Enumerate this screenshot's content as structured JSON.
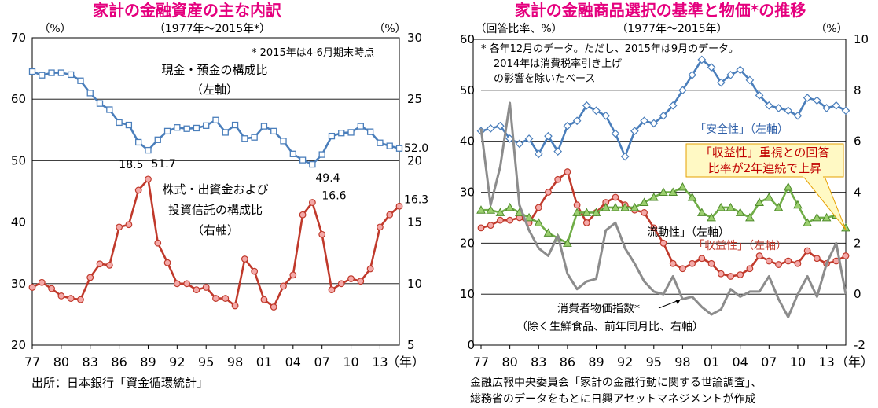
{
  "chart_data": [
    {
      "type": "line",
      "title": "家計の金融資産の主な内訳",
      "period": "（1977年～2015年*）",
      "unit_left": "（%）",
      "unit_right": "（%）",
      "x_suffix": "（年）",
      "x_tick_labels": [
        "77",
        "80",
        "83",
        "86",
        "89",
        "92",
        "95",
        "98",
        "01",
        "04",
        "07",
        "10",
        "13"
      ],
      "y_left_ticks": [
        "70",
        "60",
        "50",
        "40",
        "30",
        "20"
      ],
      "y_right_ticks": [
        "30",
        "25",
        "20",
        "15",
        "10",
        "5"
      ],
      "ylim_left": [
        20,
        70
      ],
      "ylim_right": [
        5,
        30
      ],
      "grid": true,
      "note": "* 2015年は4-6月期末時点",
      "source": "出所：日本銀行「資金循環統計」",
      "x": [
        1977,
        1978,
        1979,
        1980,
        1981,
        1982,
        1983,
        1984,
        1985,
        1986,
        1987,
        1988,
        1989,
        1990,
        1991,
        1992,
        1993,
        1994,
        1995,
        1996,
        1997,
        1998,
        1999,
        2000,
        2001,
        2002,
        2003,
        2004,
        2005,
        2006,
        2007,
        2008,
        2009,
        2010,
        2011,
        2012,
        2013,
        2014,
        2015
      ],
      "series": [
        {
          "name_lines": [
            "現金・預金の構成比",
            "（左軸）"
          ],
          "axis": "left",
          "color": "#4a7ebb",
          "marker": "square",
          "values": [
            64.5,
            63.9,
            64.3,
            64.3,
            64.0,
            63.0,
            61.0,
            59.3,
            58.3,
            56.2,
            55.8,
            53.0,
            51.7,
            53.4,
            54.8,
            55.4,
            55.2,
            55.3,
            55.7,
            56.6,
            54.6,
            55.8,
            53.6,
            53.8,
            55.6,
            54.8,
            53.2,
            51.1,
            50.1,
            49.4,
            51.0,
            54.0,
            54.5,
            54.6,
            55.6,
            54.7,
            52.9,
            52.4,
            52.0
          ],
          "data_labels": [
            {
              "index": 12,
              "text": "51.7"
            },
            {
              "index": 29,
              "text": "49.4"
            },
            {
              "index": 38,
              "text": "52.0"
            }
          ]
        },
        {
          "name_lines": [
            "株式・出資金および",
            "投資信託の構成比",
            "（右軸）"
          ],
          "axis": "right",
          "color": "#c0392b",
          "marker": "circle",
          "values": [
            9.7,
            10.1,
            9.6,
            9.0,
            8.8,
            8.7,
            10.5,
            11.6,
            11.5,
            14.6,
            14.8,
            17.6,
            18.5,
            13.3,
            11.7,
            10.0,
            10.0,
            9.5,
            9.7,
            8.8,
            8.8,
            8.2,
            12.0,
            11.0,
            8.7,
            8.1,
            9.8,
            10.7,
            15.6,
            16.6,
            14.0,
            9.5,
            10.0,
            10.4,
            10.2,
            11.2,
            14.6,
            15.6,
            16.3
          ],
          "data_labels": [
            {
              "index": 12,
              "text": "18.5"
            },
            {
              "index": 29,
              "text": "16.6"
            },
            {
              "index": 38,
              "text": "16.3"
            }
          ]
        }
      ]
    },
    {
      "type": "line",
      "title": "家計の金融商品選択の基準と物価*の推移",
      "period": "（1977年～2015年）",
      "unit_left": "（回答比率、%）",
      "unit_right": "（%）",
      "x_suffix": "（年）",
      "x_tick_labels": [
        "77",
        "80",
        "83",
        "86",
        "89",
        "92",
        "95",
        "98",
        "01",
        "04",
        "07",
        "10",
        "13"
      ],
      "y_left_ticks": [
        "60",
        "50",
        "40",
        "30",
        "20",
        "10",
        "0"
      ],
      "y_right_ticks": [
        "10",
        "8",
        "6",
        "4",
        "2",
        "0",
        "-2"
      ],
      "ylim_left": [
        0,
        60
      ],
      "ylim_right": [
        -2,
        10
      ],
      "grid": true,
      "note_lines": [
        "* 各年12月のデータ。ただし、2015年は9月のデータ。",
        "2014年は消費税率引き上げ",
        "の影響を除いたベース"
      ],
      "callout_lines": [
        "「収益性」重視との回答",
        "比率が2年連続で上昇"
      ],
      "source_lines": [
        "金融広報中央委員会「家計の金融行動に関する世論調査」、",
        "総務省のデータをもとに日興アセットマネジメントが作成"
      ],
      "x": [
        1977,
        1978,
        1979,
        1980,
        1981,
        1982,
        1983,
        1984,
        1985,
        1986,
        1987,
        1988,
        1989,
        1990,
        1991,
        1992,
        1993,
        1994,
        1995,
        1996,
        1997,
        1998,
        1999,
        2000,
        2001,
        2002,
        2003,
        2004,
        2005,
        2006,
        2007,
        2008,
        2009,
        2010,
        2011,
        2012,
        2013,
        2014,
        2015
      ],
      "series": [
        {
          "name": "「安全性」（左軸）",
          "axis": "left",
          "color": "#4a7ebb",
          "marker": "diamond",
          "values": [
            42,
            42.5,
            43,
            40.5,
            39.5,
            40.5,
            37.5,
            41,
            38,
            43,
            44,
            47,
            46,
            45,
            41.5,
            37,
            42,
            44,
            43.5,
            45,
            47,
            50,
            53,
            56,
            54.5,
            51.5,
            53,
            54,
            52,
            49,
            47,
            46.5,
            46,
            45,
            48.5,
            48,
            46.5,
            47,
            46
          ]
        },
        {
          "name": "「収益性」（左軸）",
          "axis": "left",
          "color": "#c0392b",
          "marker": "circle",
          "values": [
            23,
            23.5,
            24.5,
            24.5,
            25,
            24,
            27,
            30,
            32.5,
            34,
            27.5,
            24,
            26,
            28,
            29,
            27.5,
            26.5,
            26,
            23,
            20,
            16,
            15,
            16,
            17,
            16,
            14,
            13.5,
            13.8,
            15,
            17.5,
            16.5,
            15.8,
            16.5,
            16,
            18.5,
            17,
            16,
            16.5,
            17.5
          ]
        },
        {
          "name": "流動性」（左軸）",
          "axis": "left",
          "color": "#70ad47",
          "marker": "triangle",
          "values": [
            26.5,
            26.5,
            26,
            27,
            26,
            25,
            24,
            22,
            21,
            20,
            26,
            26,
            26,
            27,
            27,
            27,
            27,
            28,
            29,
            30,
            30,
            31,
            29,
            26,
            25,
            27,
            27,
            26,
            25,
            28,
            29,
            27,
            31,
            27.5,
            24,
            25,
            25,
            25.5,
            23
          ]
        },
        {
          "name_lines": [
            "消費者物価指数*",
            "（除く生鮮食品、前年同月比、右軸）"
          ],
          "axis": "right",
          "color": "#8c8c8c",
          "marker": "none",
          "values": [
            6.5,
            3.5,
            5,
            7.5,
            3.5,
            2.5,
            1.8,
            1.5,
            2.3,
            0.8,
            0.2,
            0.5,
            0.6,
            2.5,
            2.8,
            1.8,
            1.2,
            0.5,
            0.1,
            0,
            0.7,
            -0.2,
            -0.1,
            -0.5,
            -0.8,
            -0.6,
            0.2,
            -0.1,
            0.1,
            0.1,
            0.7,
            -0.2,
            -0.9,
            0,
            0.7,
            -0.1,
            1.2,
            2,
            0
          ]
        }
      ]
    }
  ]
}
